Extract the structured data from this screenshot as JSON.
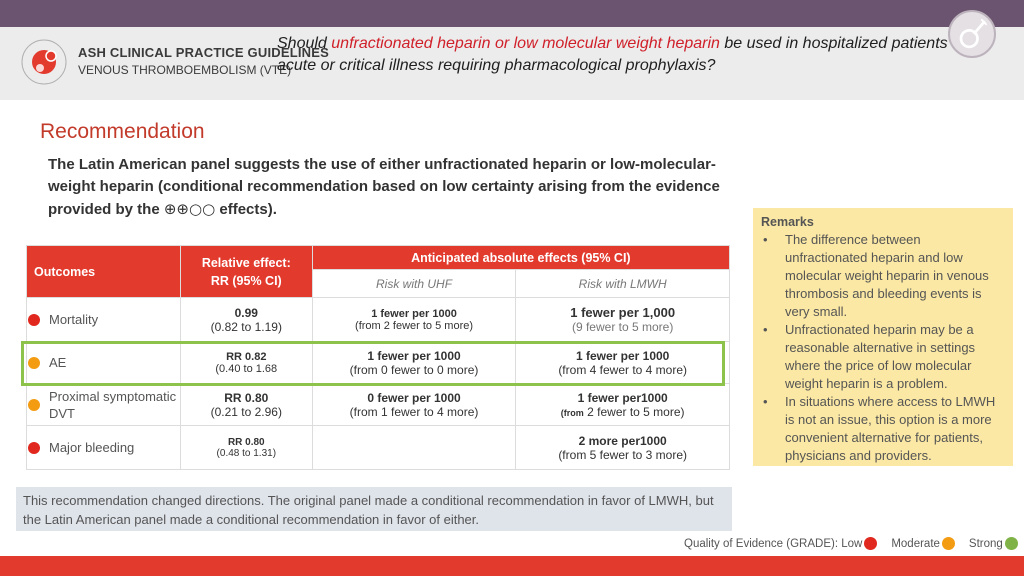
{
  "colors": {
    "topbar": "#6b5470",
    "accent_red": "#e33a2e",
    "low": "#e0281f",
    "moderate": "#f39c12",
    "strong": "#7fb347",
    "remarks_bg": "#fbe8a4",
    "highlight": "#8ec34b"
  },
  "header": {
    "logo_line1": "ASH CLINICAL PRACTICE GUIDELINES",
    "logo_line2": "VENOUS THROMBOEMBOLISM (VTE)",
    "question_part1": "Should ",
    "question_highlight": "unfractionated heparin or low molecular weight heparin",
    "question_part2": " be used in hospitalized patients with acute or critical illness requiring pharmacological prophylaxis?"
  },
  "recommendation": {
    "title": "Recommendation",
    "text_before": "The Latin American panel suggests the use of either unfractionated heparin or low-molecular-weight heparin (conditional recommendation based on low certainty arising from the evidence provided by the ",
    "certainty_symbols": "⊕⊕○○",
    "text_after": " effects)."
  },
  "table": {
    "col_outcomes": "Outcomes",
    "col_relative": "Relative effect: RR (95% CI)",
    "col_anticipated": "Anticipated absolute effects (95% CI)",
    "sub_uhf": "Risk with UHF",
    "sub_lmwh": "Risk with LMWH",
    "rows": [
      {
        "outcome": "Mortality",
        "color": "#e0281f",
        "rel_main": "0.99",
        "rel_ci": "(0.82 to 1.19)",
        "uhf_main": "1 fewer per 1000",
        "uhf_ci": "(from 2 fewer to 5 more)",
        "lmwh_main": "1 fewer per 1,000",
        "lmwh_ci": "(9 fewer to 5 more)"
      },
      {
        "outcome": "AE",
        "color": "#f39c12",
        "rel_main": "RR 0.82",
        "rel_ci": "(0.40 to 1.68",
        "uhf_main": "1 fewer per 1000",
        "uhf_ci": "(from 0 fewer to 0 more)",
        "lmwh_main": "1 fewer per 1000",
        "lmwh_ci": "(from 4 fewer to 4 more)"
      },
      {
        "outcome": "Proximal symptomatic DVT",
        "color": "#f39c12",
        "rel_main": "RR 0.80",
        "rel_ci": "(0.21 to 2.96)",
        "uhf_main": "0 fewer  per 1000",
        "uhf_ci": "(from 1 fewer to 4 more)",
        "lmwh_main": "1 fewer per1000",
        "lmwh_ci_from": "(from",
        "lmwh_ci": " 2 fewer to 5 more)"
      },
      {
        "outcome": "Major bleeding",
        "color": "#e0281f",
        "rel_main": "RR 0.80",
        "rel_ci": "(0.48 to 1.31)",
        "uhf_main": "",
        "uhf_ci": "",
        "lmwh_main": "2 more per1000",
        "lmwh_ci": "(from 5 fewer to 3 more)"
      }
    ]
  },
  "remarks": {
    "title": "Remarks",
    "items": [
      "The difference between unfractionated heparin and low molecular weight heparin in venous thrombosis and bleeding events is very small.",
      "Unfractionated heparin may be a reasonable alternative in settings where the price of low molecular weight heparin is a problem.",
      "In situations where access to LMWH is not an issue, this option is a more convenient alternative for patients, physicians and providers."
    ]
  },
  "note": "This recommendation changed directions. The original panel made a conditional recommendation in favor of LMWH, but the Latin American panel made a conditional recommendation in favor of either.",
  "quality": {
    "label": "Quality of Evidence (GRADE): Low",
    "moderate": "Moderate",
    "strong": "Strong"
  }
}
